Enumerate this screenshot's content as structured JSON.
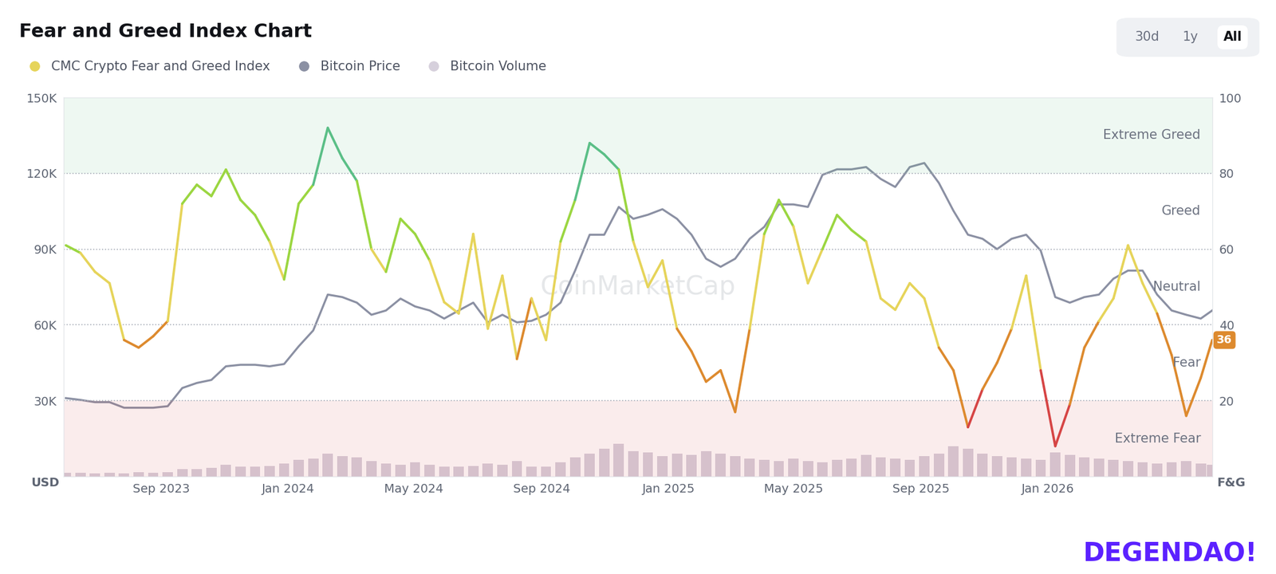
{
  "chart_data": {
    "type": "line",
    "title": "Fear and Greed Index Chart",
    "buttons": [
      "30d",
      "1y",
      "All"
    ],
    "selected": "All",
    "legend": "upper left",
    "grid": true,
    "ylabel": "USD",
    "y2label": "F&G",
    "current_value": 36,
    "watermarks": [
      "CoinMarketCap",
      "DEGENDAO!"
    ],
    "zones": [
      {
        "name": "Extreme Fear",
        "from": 0,
        "to": 20,
        "color": "#d64545"
      },
      {
        "name": "Fear",
        "from": 20,
        "to": 40,
        "color": "#dd8a2e"
      },
      {
        "name": "Neutral",
        "from": 40,
        "to": 60,
        "color": "#e6d45a"
      },
      {
        "name": "Greed",
        "from": 60,
        "to": 80,
        "color": "#9bd641"
      },
      {
        "name": "Extreme Greed",
        "from": 80,
        "to": 100,
        "color": "#5bbf87"
      }
    ],
    "x": [
      "2023-06-01",
      "2023-06-15",
      "2023-06-29",
      "2023-07-13",
      "2023-07-27",
      "2023-08-10",
      "2023-08-24",
      "2023-09-07",
      "2023-09-21",
      "2023-10-05",
      "2023-10-19",
      "2023-11-02",
      "2023-11-16",
      "2023-11-30",
      "2023-12-14",
      "2023-12-28",
      "2024-01-11",
      "2024-01-25",
      "2024-02-08",
      "2024-02-22",
      "2024-03-07",
      "2024-03-21",
      "2024-04-04",
      "2024-04-18",
      "2024-05-02",
      "2024-05-16",
      "2024-05-30",
      "2024-06-13",
      "2024-06-27",
      "2024-07-11",
      "2024-07-25",
      "2024-08-08",
      "2024-08-22",
      "2024-09-05",
      "2024-09-19",
      "2024-10-03",
      "2024-10-17",
      "2024-10-31",
      "2024-11-14",
      "2024-11-28",
      "2024-12-12",
      "2024-12-26",
      "2025-01-09",
      "2025-01-23",
      "2025-02-06",
      "2025-02-20",
      "2025-03-06",
      "2025-03-20",
      "2025-04-03",
      "2025-04-17",
      "2025-05-01",
      "2025-05-15",
      "2025-05-29",
      "2025-06-12",
      "2025-06-26",
      "2025-07-10",
      "2025-07-24",
      "2025-08-07",
      "2025-08-21",
      "2025-09-04",
      "2025-09-18",
      "2025-10-02",
      "2025-10-16",
      "2025-10-30",
      "2025-11-13",
      "2025-11-27",
      "2025-12-11",
      "2025-12-25",
      "2026-01-08",
      "2026-01-22",
      "2026-02-05",
      "2026-02-19",
      "2026-03-05",
      "2026-03-19",
      "2026-04-02",
      "2026-04-16",
      "2026-04-30",
      "2026-05-14",
      "2026-05-28",
      "2026-06-08"
    ],
    "series": [
      {
        "name": "CMC Crypto Fear and Greed Index",
        "type": "line",
        "axis": "y2",
        "color": "#e6d45a",
        "values": [
          61,
          59,
          54,
          51,
          36,
          34,
          37,
          41,
          72,
          77,
          74,
          81,
          73,
          69,
          62,
          52,
          72,
          77,
          92,
          84,
          78,
          60,
          54,
          68,
          64,
          57,
          46,
          43,
          64,
          39,
          53,
          31,
          47,
          36,
          62,
          73,
          88,
          85,
          81,
          62,
          50,
          57,
          39,
          33,
          25,
          28,
          17,
          39,
          64,
          73,
          66,
          51,
          60,
          69,
          65,
          62,
          47,
          44,
          51,
          47,
          34,
          28,
          13,
          23,
          30,
          39,
          53,
          28,
          8,
          19,
          34,
          41,
          47,
          61,
          51,
          43,
          32,
          16,
          26,
          36
        ]
      },
      {
        "name": "Bitcoin Price",
        "type": "line",
        "color": "#8b90a3",
        "values": [
          31000,
          30300,
          29400,
          29400,
          27200,
          27200,
          27200,
          27800,
          35000,
          37000,
          38200,
          43600,
          44200,
          44200,
          43600,
          44500,
          51500,
          57800,
          72000,
          71000,
          68800,
          64000,
          65700,
          70400,
          67300,
          65700,
          62500,
          65700,
          68800,
          61000,
          64000,
          61000,
          61600,
          64000,
          68800,
          81500,
          95700,
          95700,
          106700,
          102000,
          103600,
          105800,
          102000,
          95700,
          86200,
          83000,
          86200,
          94100,
          98800,
          107700,
          107700,
          106700,
          119400,
          121600,
          121600,
          122500,
          117800,
          114600,
          122500,
          124100,
          116200,
          105200,
          95700,
          94100,
          90000,
          94100,
          95700,
          89400,
          71000,
          68800,
          71000,
          72000,
          78300,
          81500,
          81500,
          72000,
          65700,
          64000,
          62500,
          65700
        ]
      },
      {
        "name": "Bitcoin Volume",
        "type": "bar",
        "color": "#d6d0dc",
        "values": [
          1500,
          1400,
          1300,
          1500,
          1200,
          1600,
          1400,
          1800,
          3000,
          2800,
          3500,
          4500,
          4000,
          3800,
          4200,
          5000,
          6500,
          7000,
          9000,
          8000,
          7500,
          6000,
          5000,
          4500,
          5500,
          4500,
          4000,
          3800,
          4200,
          5200,
          4600,
          6000,
          4000,
          3800,
          5500,
          7500,
          9000,
          11000,
          13000,
          10000,
          9500,
          8000,
          9000,
          8500,
          10000,
          9000,
          8000,
          7000,
          6500,
          6000,
          7000,
          6000,
          5500,
          6500,
          7000,
          8500,
          7500,
          7000,
          6500,
          8000,
          9000,
          12000,
          11000,
          9000,
          8000,
          7500,
          7000,
          6500,
          9500,
          8500,
          7500,
          7000,
          6500,
          6000,
          5500,
          5000,
          5500,
          6000,
          5000,
          4500
        ]
      }
    ],
    "xlim": [
      "2023-05-30",
      "2026-06-08"
    ],
    "xticks": [
      {
        "value": "2023-09-01",
        "label": "Sep 2023"
      },
      {
        "value": "2024-01-01",
        "label": "Jan 2024"
      },
      {
        "value": "2024-05-01",
        "label": "May 2024"
      },
      {
        "value": "2024-09-01",
        "label": "Sep 2024"
      },
      {
        "value": "2025-01-01",
        "label": "Jan 2025"
      },
      {
        "value": "2025-05-01",
        "label": "May 2025"
      },
      {
        "value": "2025-09-01",
        "label": "Sep 2025"
      },
      {
        "value": "2026-01-01",
        "label": "Jan 2026"
      }
    ],
    "ylim": [
      0,
      150000
    ],
    "yticks": [
      {
        "value": 30000,
        "label": "30K"
      },
      {
        "value": 60000,
        "label": "60K"
      },
      {
        "value": 90000,
        "label": "90K"
      },
      {
        "value": 120000,
        "label": "120K"
      },
      {
        "value": 150000,
        "label": "150K"
      }
    ],
    "y2lim": [
      0,
      100
    ],
    "y2ticks": [
      20,
      40,
      60,
      80,
      100
    ]
  }
}
